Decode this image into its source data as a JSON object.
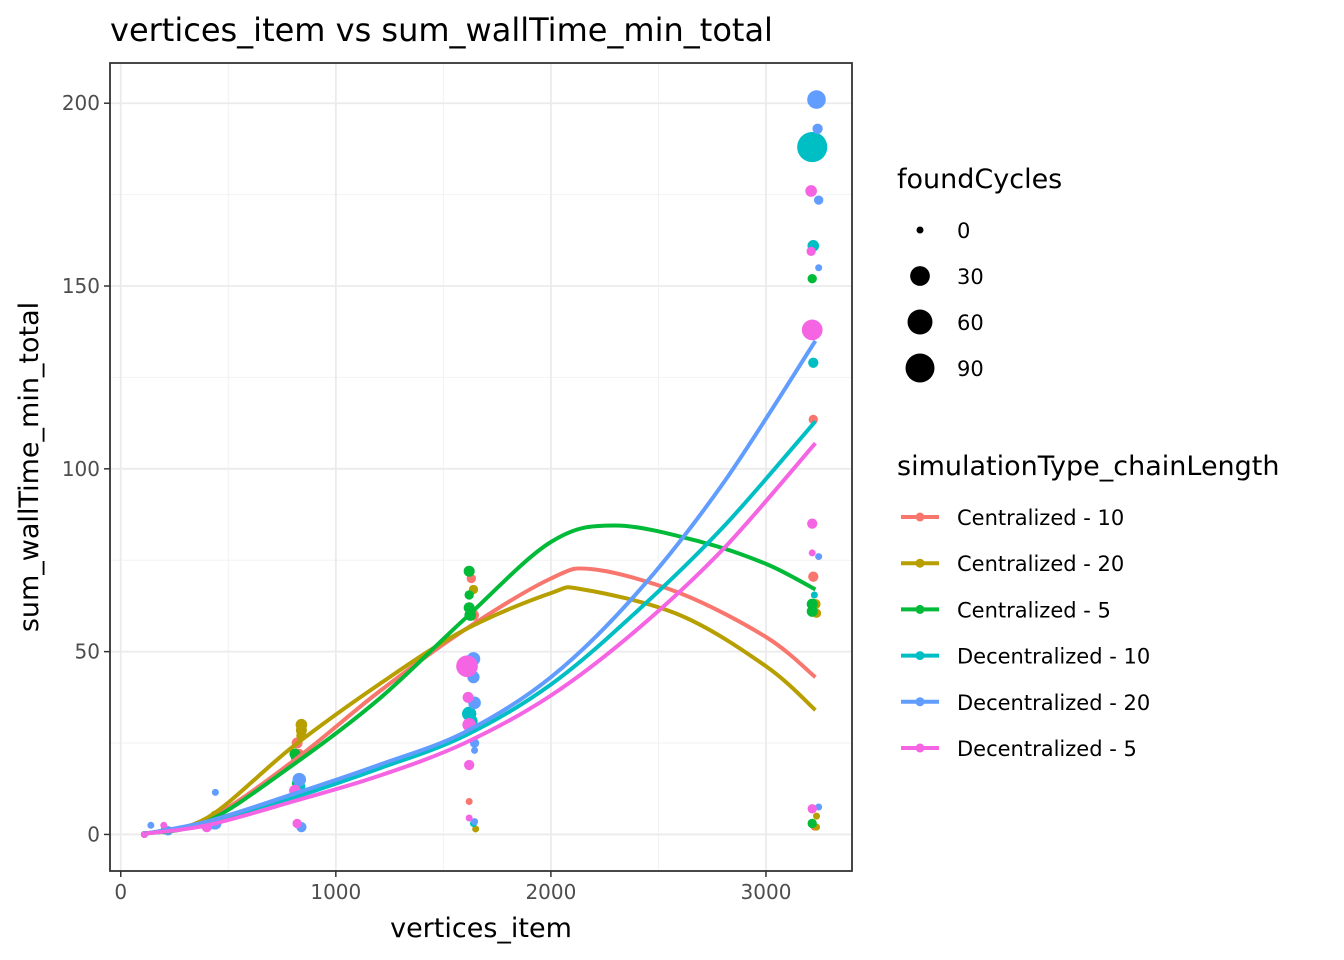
{
  "chart_data": {
    "type": "scatter",
    "title": "vertices_item  vs  sum_wallTime_min_total",
    "xlabel": "vertices_item",
    "ylabel": "sum_wallTime_min_total",
    "xlim": [
      -50,
      3400
    ],
    "ylim": [
      -10,
      211
    ],
    "x_ticks": [
      0,
      1000,
      2000,
      3000
    ],
    "y_ticks": [
      0,
      50,
      100,
      150,
      200
    ],
    "grid": true,
    "legend_position": "right",
    "size_legend": {
      "title": "foundCycles",
      "entries": [
        {
          "label": "0",
          "value": 0
        },
        {
          "label": "30",
          "value": 30
        },
        {
          "label": "60",
          "value": 60
        },
        {
          "label": "90",
          "value": 90
        }
      ]
    },
    "color_legend": {
      "title": "simulationType_chainLength"
    },
    "series": [
      {
        "name": "Centralized - 10",
        "color": "#F8766D",
        "trend": [
          [
            110,
            0.2
          ],
          [
            400,
            4
          ],
          [
            800,
            20
          ],
          [
            1200,
            39
          ],
          [
            1600,
            56
          ],
          [
            2000,
            70
          ],
          [
            2200,
            72.5
          ],
          [
            2600,
            66
          ],
          [
            3000,
            54
          ],
          [
            3230,
            43
          ]
        ],
        "points": [
          [
            110,
            0,
            0
          ],
          [
            200,
            1,
            0
          ],
          [
            430,
            4,
            2
          ],
          [
            820,
            25,
            3
          ],
          [
            830,
            22,
            2
          ],
          [
            1610,
            47,
            6
          ],
          [
            1620,
            9,
            0
          ],
          [
            1630,
            70,
            1
          ],
          [
            1640,
            60,
            3
          ],
          [
            3220,
            113.5,
            1
          ],
          [
            3220,
            70.5,
            2
          ],
          [
            3225,
            2,
            0
          ]
        ]
      },
      {
        "name": "Centralized - 20",
        "color": "#B79F00",
        "trend": [
          [
            110,
            0.2
          ],
          [
            400,
            4.5
          ],
          [
            800,
            24
          ],
          [
            1200,
            41
          ],
          [
            1600,
            56
          ],
          [
            2000,
            66
          ],
          [
            2150,
            67
          ],
          [
            2600,
            60
          ],
          [
            3000,
            46
          ],
          [
            3230,
            34
          ]
        ],
        "points": [
          [
            110,
            0,
            0
          ],
          [
            200,
            1,
            0
          ],
          [
            440,
            5,
            3
          ],
          [
            840,
            30,
            4
          ],
          [
            840,
            28.5,
            3
          ],
          [
            840,
            27,
            2
          ],
          [
            1640,
            67,
            1
          ],
          [
            1650,
            1.5,
            0
          ],
          [
            3230,
            63,
            2
          ],
          [
            3235,
            60.5,
            1
          ],
          [
            3235,
            5,
            0
          ],
          [
            3235,
            2,
            0
          ]
        ]
      },
      {
        "name": "Centralized - 5",
        "color": "#00BA38",
        "trend": [
          [
            110,
            0.2
          ],
          [
            400,
            3.5
          ],
          [
            800,
            19
          ],
          [
            1200,
            37
          ],
          [
            1600,
            59
          ],
          [
            2000,
            80
          ],
          [
            2300,
            84.5
          ],
          [
            2700,
            80
          ],
          [
            3000,
            74
          ],
          [
            3230,
            67
          ]
        ],
        "points": [
          [
            110,
            0,
            0
          ],
          [
            200,
            1,
            0
          ],
          [
            420,
            3,
            1
          ],
          [
            810,
            22,
            3
          ],
          [
            815,
            21,
            2
          ],
          [
            820,
            14,
            2
          ],
          [
            1620,
            72,
            3
          ],
          [
            1620,
            65.5,
            1
          ],
          [
            1620,
            62,
            3
          ],
          [
            1625,
            60,
            4
          ],
          [
            3215,
            152,
            1
          ],
          [
            3215,
            63,
            3
          ],
          [
            3215,
            61,
            3
          ],
          [
            3215,
            3,
            1
          ]
        ]
      },
      {
        "name": "Decentralized - 10",
        "color": "#00BFC4",
        "trend": [
          [
            110,
            0.2
          ],
          [
            400,
            3
          ],
          [
            800,
            10
          ],
          [
            1200,
            18
          ],
          [
            1600,
            27
          ],
          [
            2000,
            41
          ],
          [
            2400,
            61
          ],
          [
            2800,
            84
          ],
          [
            3230,
            113
          ]
        ],
        "points": [
          [
            110,
            0,
            0
          ],
          [
            220,
            1,
            1
          ],
          [
            430,
            3,
            4
          ],
          [
            830,
            13,
            5
          ],
          [
            1620,
            33,
            10
          ],
          [
            1630,
            31,
            6
          ],
          [
            1640,
            3,
            0
          ],
          [
            3215,
            188,
            100
          ],
          [
            3220,
            161,
            4
          ],
          [
            3220,
            129,
            2
          ],
          [
            3225,
            65.5,
            0
          ]
        ]
      },
      {
        "name": "Decentralized - 20",
        "color": "#619CFF",
        "trend": [
          [
            110,
            0.2
          ],
          [
            400,
            3.5
          ],
          [
            800,
            11
          ],
          [
            1200,
            19
          ],
          [
            1600,
            28
          ],
          [
            2000,
            43
          ],
          [
            2400,
            66
          ],
          [
            2800,
            96
          ],
          [
            3230,
            135
          ]
        ],
        "points": [
          [
            110,
            0,
            0
          ],
          [
            140,
            2.5,
            0
          ],
          [
            220,
            1,
            1
          ],
          [
            440,
            11.5,
            0
          ],
          [
            440,
            3,
            5
          ],
          [
            830,
            15,
            8
          ],
          [
            840,
            2,
            2
          ],
          [
            1640,
            48,
            8
          ],
          [
            1640,
            43,
            5
          ],
          [
            1645,
            36,
            6
          ],
          [
            1645,
            25,
            1
          ],
          [
            1645,
            23,
            0
          ],
          [
            1645,
            3.5,
            0
          ],
          [
            3235,
            201,
            25
          ],
          [
            3240,
            193,
            2
          ],
          [
            3245,
            173.5,
            1
          ],
          [
            3245,
            155,
            0
          ],
          [
            3245,
            76,
            0
          ],
          [
            3245,
            7.5,
            0
          ]
        ]
      },
      {
        "name": "Decentralized - 5",
        "color": "#F564E3",
        "trend": [
          [
            110,
            0.2
          ],
          [
            400,
            2.5
          ],
          [
            800,
            9
          ],
          [
            1200,
            16
          ],
          [
            1600,
            25
          ],
          [
            2000,
            38
          ],
          [
            2400,
            56
          ],
          [
            2800,
            78
          ],
          [
            3230,
            107
          ]
        ],
        "points": [
          [
            110,
            0,
            0
          ],
          [
            200,
            2.5,
            0
          ],
          [
            400,
            2,
            2
          ],
          [
            810,
            12,
            4
          ],
          [
            820,
            3,
            1
          ],
          [
            1610,
            46,
            40
          ],
          [
            1615,
            37.5,
            3
          ],
          [
            1620,
            30,
            8
          ],
          [
            1620,
            19,
            2
          ],
          [
            1620,
            4.5,
            0
          ],
          [
            3210,
            176,
            4
          ],
          [
            3210,
            159.5,
            1
          ],
          [
            3215,
            138,
            35
          ],
          [
            3215,
            85,
            2
          ],
          [
            3215,
            77,
            0
          ],
          [
            3215,
            7,
            1
          ]
        ]
      }
    ]
  }
}
